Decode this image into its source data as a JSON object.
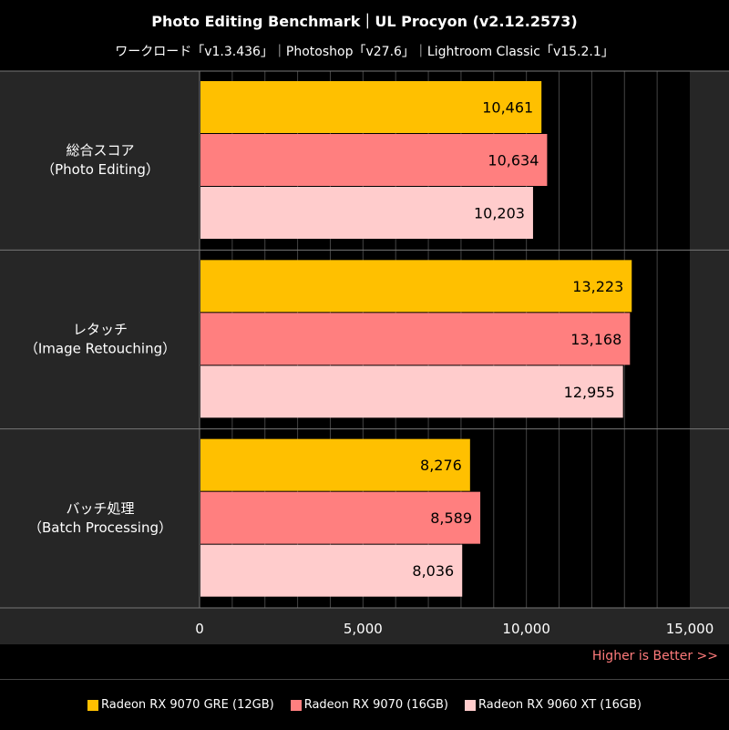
{
  "header": {
    "title": "Photo Editing Benchmark｜UL Procyon (v2.12.2573)",
    "subtitle": "ワークロード「v1.3.436」｜Photoshop「v27.6」｜Lightroom Classic「v15.2.1」"
  },
  "note": "Higher is Better >>",
  "colors": {
    "series": [
      "#ffc000",
      "#ff7f7f",
      "#ffcccc"
    ],
    "panel": "#262626",
    "plot_bg": "#000000",
    "grid": "#444444",
    "note": "#ff7b7b"
  },
  "chart_data": {
    "type": "bar",
    "orientation": "horizontal",
    "categories": [
      [
        "総合スコア",
        "（Photo Editing）"
      ],
      [
        "レタッチ",
        "（Image Retouching）"
      ],
      [
        "バッチ処理",
        "（Batch Processing）"
      ]
    ],
    "series": [
      {
        "name": "Radeon RX 9070 GRE (12GB)",
        "values": [
          10461,
          13223,
          8276
        ]
      },
      {
        "name": "Radeon RX 9070 (16GB)",
        "values": [
          10634,
          13168,
          8589
        ]
      },
      {
        "name": "Radeon RX 9060 XT (16GB)",
        "values": [
          10203,
          12955,
          8036
        ]
      }
    ],
    "value_labels": [
      [
        "10,461",
        "13,223",
        "8,276"
      ],
      [
        "10,634",
        "13,168",
        "8,589"
      ],
      [
        "10,203",
        "12,955",
        "8,036"
      ]
    ],
    "xlim": [
      0,
      15000
    ],
    "x_ticks": [
      0,
      5000,
      10000,
      15000
    ],
    "x_tick_labels": [
      "0",
      "5,000",
      "10,000",
      "15,000"
    ],
    "minor_grid_step": 1000,
    "legend_position": "bottom",
    "grid": true
  }
}
